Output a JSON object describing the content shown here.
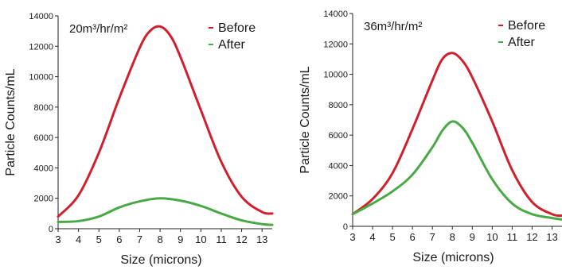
{
  "chart_data": [
    {
      "type": "line",
      "title": "20m³/hr/m²",
      "xlabel": "Size (microns)",
      "ylabel": "Particle Counts/mL",
      "xlim": [
        3,
        13.5
      ],
      "ylim": [
        0,
        14000
      ],
      "xticks": [
        3,
        4,
        5,
        6,
        7,
        8,
        9,
        10,
        11,
        12,
        13
      ],
      "yticks": [
        0,
        2000,
        4000,
        6000,
        8000,
        10000,
        12000,
        14000
      ],
      "x_tick_labels": [
        "3",
        "4",
        "5",
        "6",
        "7",
        "8",
        "9",
        "10",
        "11",
        "12",
        "13"
      ],
      "y_tick_labels": [
        "0",
        "2000",
        "4000",
        "6000",
        "8000",
        "10000",
        "12000",
        "14000"
      ],
      "grid": false,
      "legend": "top-right",
      "series": [
        {
          "name": "Before",
          "color": "#d0202e",
          "x": [
            3,
            4,
            5,
            6,
            7,
            7.5,
            8,
            8.5,
            9,
            10,
            11,
            12,
            13,
            13.5
          ],
          "y": [
            800,
            2200,
            5000,
            8600,
            11900,
            13000,
            13300,
            12700,
            11300,
            7800,
            4400,
            2100,
            1100,
            1000
          ]
        },
        {
          "name": "After",
          "color": "#4aa845",
          "x": [
            3,
            4,
            5,
            6,
            7,
            8,
            9,
            10,
            11,
            12,
            13,
            13.5
          ],
          "y": [
            450,
            500,
            800,
            1400,
            1800,
            2000,
            1850,
            1500,
            1000,
            550,
            300,
            250
          ]
        }
      ]
    },
    {
      "type": "line",
      "title": "36m³/hr/m²",
      "xlabel": "Size (microns)",
      "ylabel": "Particle Counts/mL",
      "xlim": [
        3,
        13.5
      ],
      "ylim": [
        0,
        14000
      ],
      "xticks": [
        3,
        4,
        5,
        6,
        7,
        8,
        9,
        10,
        11,
        12,
        13
      ],
      "yticks": [
        0,
        2000,
        4000,
        6000,
        8000,
        10000,
        12000,
        14000
      ],
      "x_tick_labels": [
        "3",
        "4",
        "5",
        "6",
        "7",
        "8",
        "9",
        "10",
        "11",
        "12",
        "13"
      ],
      "y_tick_labels": [
        "0",
        "2000",
        "4000",
        "6000",
        "8000",
        "10000",
        "12000",
        "14000"
      ],
      "grid": false,
      "legend": "top-right",
      "series": [
        {
          "name": "Before",
          "color": "#d0202e",
          "x": [
            3,
            4,
            5,
            6,
            7,
            7.5,
            8,
            8.5,
            9,
            10,
            11,
            12,
            13,
            13.5
          ],
          "y": [
            800,
            1800,
            3500,
            6400,
            9600,
            11000,
            11400,
            10900,
            9800,
            6900,
            3700,
            1600,
            800,
            700
          ]
        },
        {
          "name": "After",
          "color": "#4aa845",
          "x": [
            3,
            4,
            5,
            6,
            7,
            7.5,
            8,
            8.5,
            9,
            10,
            11,
            12,
            13,
            13.5
          ],
          "y": [
            800,
            1500,
            2300,
            3400,
            5200,
            6300,
            6900,
            6500,
            5500,
            3100,
            1500,
            800,
            550,
            450
          ]
        }
      ]
    }
  ]
}
